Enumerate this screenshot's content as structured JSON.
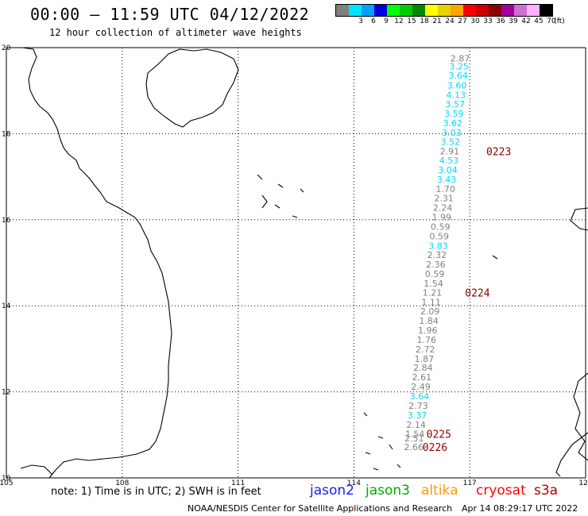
{
  "header": {
    "title": "00:00 – 11:59 UTC 04/12/2022",
    "subtitle": "12 hour collection of altimeter wave heights"
  },
  "legend": {
    "unit_label": "(ft)",
    "bins": [
      {
        "label": "",
        "color": "#808080"
      },
      {
        "label": "3",
        "color": "#00e5ff"
      },
      {
        "label": "6",
        "color": "#00a0ff"
      },
      {
        "label": "9",
        "color": "#0000e0"
      },
      {
        "label": "12",
        "color": "#00ff00"
      },
      {
        "label": "15",
        "color": "#00cc00"
      },
      {
        "label": "18",
        "color": "#008800"
      },
      {
        "label": "21",
        "color": "#ffff00"
      },
      {
        "label": "24",
        "color": "#e6d200"
      },
      {
        "label": "27",
        "color": "#ffa500"
      },
      {
        "label": "30",
        "color": "#ff0000"
      },
      {
        "label": "33",
        "color": "#cc0000"
      },
      {
        "label": "36",
        "color": "#8b0000"
      },
      {
        "label": "39",
        "color": "#a000a0"
      },
      {
        "label": "42",
        "color": "#d070d0"
      },
      {
        "label": "45",
        "color": "#ffb0ff"
      },
      {
        "label": "70",
        "color": "#000000"
      }
    ]
  },
  "axes": {
    "x_ticks": [
      "105",
      "108",
      "111",
      "114",
      "117",
      "120"
    ],
    "y_ticks": [
      "20",
      "18",
      "16",
      "14",
      "12",
      "10"
    ],
    "lon_range": [
      105,
      120
    ],
    "lat_range": [
      10,
      20
    ]
  },
  "wave_heights": [
    {
      "text": "2.87",
      "lon": 116.75,
      "lat": 19.75,
      "color": "#808080"
    },
    {
      "text": "3.25",
      "lon": 116.72,
      "lat": 19.57,
      "color": "#00d8ff"
    },
    {
      "text": "3.64",
      "lon": 116.7,
      "lat": 19.35,
      "color": "#00d8ff"
    },
    {
      "text": "3.60",
      "lon": 116.67,
      "lat": 19.12,
      "color": "#00d8ff"
    },
    {
      "text": "4.13",
      "lon": 116.64,
      "lat": 18.9,
      "color": "#00d8ff"
    },
    {
      "text": "3.57",
      "lon": 116.62,
      "lat": 18.69,
      "color": "#00d8ff"
    },
    {
      "text": "3.59",
      "lon": 116.59,
      "lat": 18.47,
      "color": "#00d8ff"
    },
    {
      "text": "3.62",
      "lon": 116.56,
      "lat": 18.25,
      "color": "#00d8ff"
    },
    {
      "text": "3.03",
      "lon": 116.53,
      "lat": 18.03,
      "color": "#00d8ff"
    },
    {
      "text": "3.52",
      "lon": 116.5,
      "lat": 17.81,
      "color": "#00d8ff"
    },
    {
      "text": "2.91",
      "lon": 116.48,
      "lat": 17.59,
      "color": "#808080"
    },
    {
      "text": "4.53",
      "lon": 116.46,
      "lat": 17.38,
      "color": "#00d8ff"
    },
    {
      "text": "3.04",
      "lon": 116.43,
      "lat": 17.16,
      "color": "#00d8ff"
    },
    {
      "text": "3.43",
      "lon": 116.4,
      "lat": 16.94,
      "color": "#00d8ff"
    },
    {
      "text": "1.70",
      "lon": 116.37,
      "lat": 16.72,
      "color": "#808080"
    },
    {
      "text": "2.31",
      "lon": 116.33,
      "lat": 16.5,
      "color": "#808080"
    },
    {
      "text": "2.24",
      "lon": 116.3,
      "lat": 16.28,
      "color": "#808080"
    },
    {
      "text": "1.99",
      "lon": 116.27,
      "lat": 16.06,
      "color": "#808080"
    },
    {
      "text": "0.59",
      "lon": 116.24,
      "lat": 15.84,
      "color": "#808080"
    },
    {
      "text": "0.59",
      "lon": 116.21,
      "lat": 15.62,
      "color": "#808080"
    },
    {
      "text": "3.83",
      "lon": 116.18,
      "lat": 15.4,
      "color": "#00d8ff"
    },
    {
      "text": "2.32",
      "lon": 116.15,
      "lat": 15.18,
      "color": "#808080"
    },
    {
      "text": "2.36",
      "lon": 116.12,
      "lat": 14.96,
      "color": "#808080"
    },
    {
      "text": "0.59",
      "lon": 116.09,
      "lat": 14.74,
      "color": "#808080"
    },
    {
      "text": "1.54",
      "lon": 116.06,
      "lat": 14.52,
      "color": "#808080"
    },
    {
      "text": "1.21",
      "lon": 116.03,
      "lat": 14.31,
      "color": "#808080"
    },
    {
      "text": "1.11",
      "lon": 116.0,
      "lat": 14.09,
      "color": "#808080"
    },
    {
      "text": "2.09",
      "lon": 115.97,
      "lat": 13.87,
      "color": "#808080"
    },
    {
      "text": "1.84",
      "lon": 115.94,
      "lat": 13.65,
      "color": "#808080"
    },
    {
      "text": "1.96",
      "lon": 115.91,
      "lat": 13.43,
      "color": "#808080"
    },
    {
      "text": "1.76",
      "lon": 115.88,
      "lat": 13.21,
      "color": "#808080"
    },
    {
      "text": "2.72",
      "lon": 115.85,
      "lat": 12.99,
      "color": "#808080"
    },
    {
      "text": "1.87",
      "lon": 115.82,
      "lat": 12.77,
      "color": "#808080"
    },
    {
      "text": "2.84",
      "lon": 115.79,
      "lat": 12.56,
      "color": "#808080"
    },
    {
      "text": "2.61",
      "lon": 115.76,
      "lat": 12.34,
      "color": "#808080"
    },
    {
      "text": "2.49",
      "lon": 115.73,
      "lat": 12.12,
      "color": "#808080"
    },
    {
      "text": "3.64",
      "lon": 115.7,
      "lat": 11.9,
      "color": "#00d8ff"
    },
    {
      "text": "2.73",
      "lon": 115.67,
      "lat": 11.68,
      "color": "#808080"
    },
    {
      "text": "3.37",
      "lon": 115.64,
      "lat": 11.46,
      "color": "#00d8ff"
    },
    {
      "text": "2.14",
      "lon": 115.61,
      "lat": 11.24,
      "color": "#808080"
    },
    {
      "text": "1.54",
      "lon": 115.58,
      "lat": 11.02,
      "color": "#808080"
    },
    {
      "text": "2.51",
      "lon": 115.56,
      "lat": 10.92,
      "color": "#808080"
    },
    {
      "text": "2.66",
      "lon": 115.55,
      "lat": 10.72,
      "color": "#808080"
    }
  ],
  "time_labels": [
    {
      "text": "0223",
      "lon": 117.75,
      "lat": 17.59
    },
    {
      "text": "0224",
      "lon": 117.2,
      "lat": 14.31
    },
    {
      "text": "0225",
      "lon": 116.2,
      "lat": 11.02
    },
    {
      "text": "0226",
      "lon": 116.1,
      "lat": 10.72
    }
  ],
  "footer": {
    "note": "note: 1) Time is in UTC; 2) SWH is in feet",
    "satellites": [
      {
        "text": "jason2",
        "color": "#1a1aff"
      },
      {
        "text": "jason3",
        "color": "#00aa00"
      },
      {
        "text": "altika",
        "color": "#ff9900"
      },
      {
        "text": "cryosat",
        "color": "#ff0000"
      },
      {
        "text": "s3a",
        "color": "#b00000"
      }
    ],
    "credit": "NOAA/NESDIS Center for Satellite Applications and Research",
    "generated": "Apr 14 08:29:17 UTC 2022"
  }
}
